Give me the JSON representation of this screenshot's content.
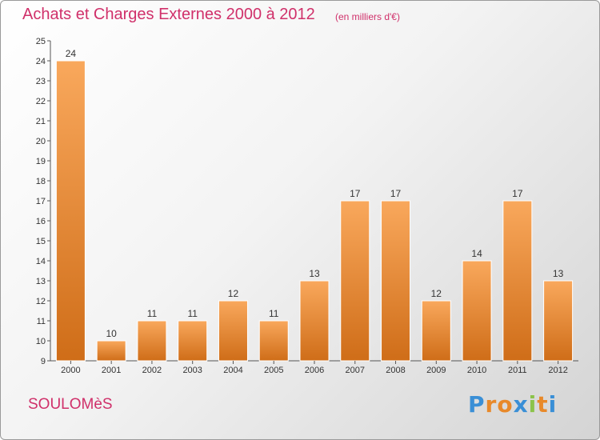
{
  "header": {
    "title": "Achats et Charges Externes 2000 à 2012",
    "subtitle": "(en milliers d'€)"
  },
  "footer": {
    "commune": "SOULOMèS",
    "brand": "Proxiti"
  },
  "colors": {
    "title": "#d0306a",
    "bar_light": "#f9a85c",
    "bar_dark": "#cf6d18",
    "brand_letters": [
      "#3a8fd6",
      "#e8892a",
      "#e8892a",
      "#3a8fd6",
      "#8bc34a",
      "#e8892a",
      "#3a8fd6"
    ]
  },
  "chart_data": {
    "type": "bar",
    "categories": [
      "2000",
      "2001",
      "2002",
      "2003",
      "2004",
      "2005",
      "2006",
      "2007",
      "2008",
      "2009",
      "2010",
      "2011",
      "2012"
    ],
    "values": [
      24,
      10,
      11,
      11,
      12,
      11,
      13,
      17,
      17,
      12,
      14,
      17,
      13
    ],
    "title": "Achats et Charges Externes 2000 à 2012",
    "xlabel": "",
    "ylabel": "",
    "ylim": [
      9,
      25
    ],
    "yticks": [
      9,
      10,
      11,
      12,
      13,
      14,
      15,
      16,
      17,
      18,
      19,
      20,
      21,
      22,
      23,
      24,
      25
    ],
    "grid": false,
    "legend": "none",
    "data_labels": true
  }
}
